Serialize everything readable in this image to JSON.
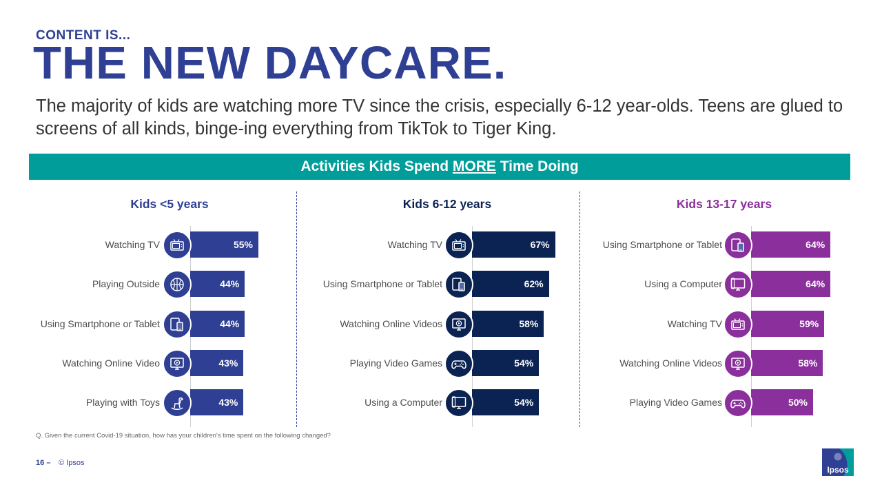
{
  "header": {
    "kicker": "CONTENT IS...",
    "title": "THE NEW DAYCARE.",
    "subtitle": "The majority of kids are watching more TV since the crisis, especially 6-12 year-olds. Teens are glued to screens of all kinds, binge-ing everything from TikTok to Tiger King."
  },
  "banner": {
    "prefix": "Activities Kids Spend ",
    "emphasis": "MORE",
    "suffix": " Time Doing",
    "color": "#009d9a"
  },
  "chart_data": [
    {
      "type": "bar",
      "title": "Kids <5 years",
      "color": "#2e3f94",
      "title_color": "#2e3f94",
      "categories": [
        "Watching TV",
        "Playing Outside",
        "Using Smartphone or Tablet",
        "Watching Online Video",
        "Playing with Toys"
      ],
      "values": [
        55,
        44,
        44,
        43,
        43
      ],
      "value_labels": [
        "55%",
        "44%",
        "44%",
        "43%",
        "43%"
      ],
      "icons": [
        "tv-icon",
        "basketball-icon",
        "phone-tablet-icon",
        "online-video-icon",
        "rocking-horse-icon"
      ]
    },
    {
      "type": "bar",
      "title": "Kids 6-12 years",
      "color": "#0a2352",
      "title_color": "#0a2352",
      "categories": [
        "Watching TV",
        "Using Smartphone or Tablet",
        "Watching Online Videos",
        "Playing Video Games",
        "Using a Computer"
      ],
      "values": [
        67,
        62,
        58,
        54,
        54
      ],
      "value_labels": [
        "67%",
        "62%",
        "58%",
        "54%",
        "54%"
      ],
      "icons": [
        "tv-icon",
        "phone-tablet-icon",
        "online-video-icon",
        "gamepad-icon",
        "computer-icon"
      ]
    },
    {
      "type": "bar",
      "title": "Kids 13-17 years",
      "color": "#8a2f9c",
      "title_color": "#8a2f9c",
      "categories": [
        "Using Smartphone or Tablet",
        "Using a Computer",
        "Watching TV",
        "Watching Online Videos",
        "Playing Video Games"
      ],
      "values": [
        64,
        64,
        59,
        58,
        50
      ],
      "value_labels": [
        "64%",
        "64%",
        "59%",
        "58%",
        "50%"
      ],
      "icons": [
        "phone-tablet-icon",
        "computer-icon",
        "tv-icon",
        "online-video-icon",
        "gamepad-icon"
      ]
    }
  ],
  "footer": {
    "question": "Q. Given the current Covid-19 situation, how has your children's time spent on the following changed?",
    "page": "16",
    "page_sep": "–",
    "copyright": "© Ipsos",
    "logo_text": "Ipsos"
  }
}
